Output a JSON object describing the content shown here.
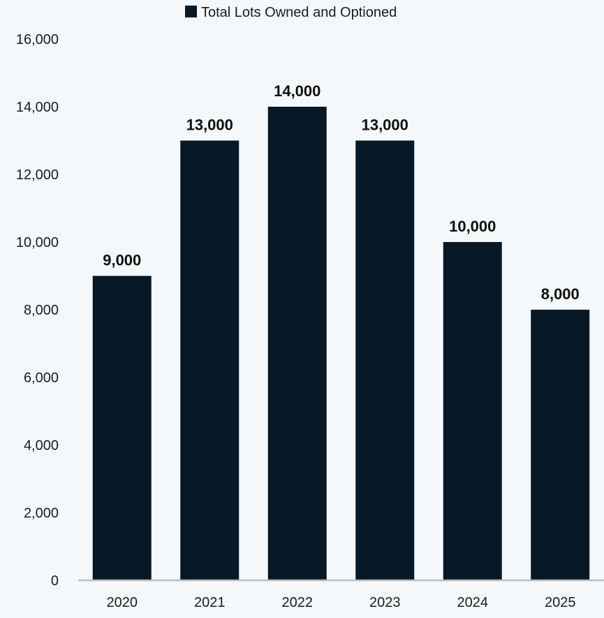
{
  "chart_data": {
    "type": "bar",
    "categories": [
      "2020",
      "2021",
      "2022",
      "2023",
      "2024",
      "2025"
    ],
    "series": [
      {
        "name": "Total Lots Owned and Optioned",
        "values": [
          9000,
          13000,
          14000,
          13000,
          10000,
          8000
        ],
        "color": "#071826"
      }
    ],
    "data_labels": [
      "9,000",
      "13,000",
      "14,000",
      "13,000",
      "10,000",
      "8,000"
    ],
    "y_ticks": [
      "0",
      "2,000",
      "4,000",
      "6,000",
      "8,000",
      "10,000",
      "12,000",
      "14,000",
      "16,000"
    ],
    "ylim": [
      0,
      16000
    ],
    "legend": {
      "position": "top-center",
      "label": "Total Lots Owned and Optioned"
    },
    "grid": false,
    "xlabel": "",
    "ylabel": "",
    "colors": {
      "background": "#f5f8fa",
      "axis_line": "#bdbdbd",
      "bar": "#071826",
      "text": "#1b1b1b"
    }
  }
}
